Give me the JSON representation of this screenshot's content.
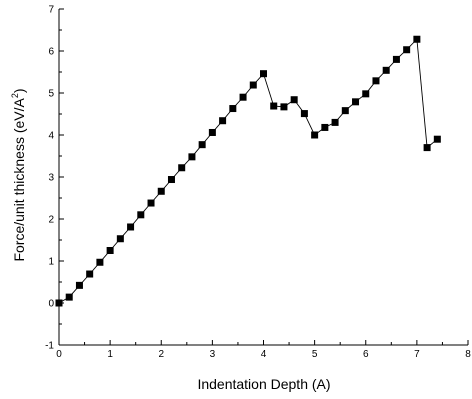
{
  "chart_data": {
    "type": "line",
    "xlabel": "Indentation Depth (A)",
    "ylabel_main": "Force/unit thickness (eV/A",
    "ylabel_sup": "2",
    "ylabel_close": ")",
    "xlim": [
      0,
      8
    ],
    "ylim": [
      -1,
      7
    ],
    "x_ticks": [
      0,
      1,
      2,
      3,
      4,
      5,
      6,
      7,
      8
    ],
    "y_ticks": [
      -1,
      0,
      1,
      2,
      3,
      4,
      5,
      6,
      7
    ],
    "x_tick_labels": [
      "0",
      "1",
      "2",
      "3",
      "4",
      "5",
      "6",
      "7",
      "8"
    ],
    "y_tick_labels": [
      "-1",
      "0",
      "1",
      "2",
      "3",
      "4",
      "5",
      "6",
      "7"
    ],
    "grid": false,
    "marker": "square",
    "color": "#000000",
    "series": [
      {
        "x": [
          0,
          0.2,
          0.4,
          0.6,
          0.8,
          1.0,
          1.2,
          1.4,
          1.6,
          1.8,
          2.0,
          2.2,
          2.4,
          2.6,
          2.8,
          3.0,
          3.2,
          3.4,
          3.6,
          3.8,
          4.0,
          4.2,
          4.4,
          4.6,
          4.8,
          5.0,
          5.2,
          5.4,
          5.6,
          5.8,
          6.0,
          6.2,
          6.4,
          6.6,
          6.8,
          7.0,
          7.2,
          7.4
        ],
        "y": [
          0.0,
          0.14,
          0.42,
          0.69,
          0.97,
          1.25,
          1.53,
          1.81,
          2.1,
          2.38,
          2.66,
          2.94,
          3.22,
          3.48,
          3.77,
          4.06,
          4.34,
          4.63,
          4.9,
          5.19,
          5.46,
          4.69,
          4.67,
          4.84,
          4.51,
          4.0,
          4.18,
          4.3,
          4.58,
          4.79,
          4.98,
          5.29,
          5.54,
          5.8,
          6.03,
          6.28,
          3.7,
          3.9
        ]
      }
    ]
  }
}
